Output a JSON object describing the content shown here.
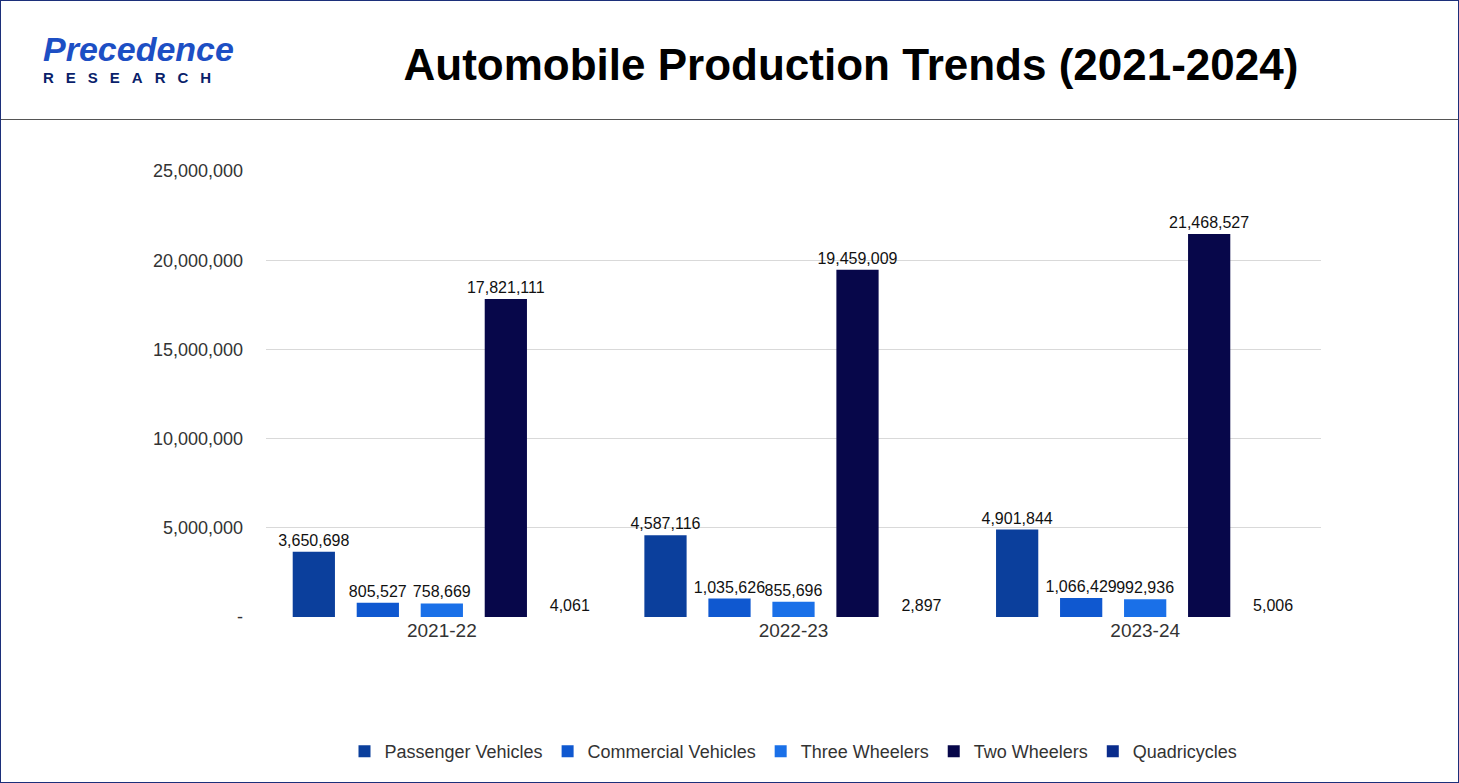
{
  "logo": {
    "name": "Precedence",
    "tagline": "RESEARCH"
  },
  "chart_data": {
    "type": "bar",
    "title": "Automobile Production Trends (2021-2024)",
    "categories": [
      "2021-22",
      "2022-23",
      "2023-24"
    ],
    "series": [
      {
        "name": "Passenger Vehicles",
        "color": "#0b3f9c",
        "values": [
          3650698,
          4587116,
          4901844
        ],
        "value_labels": [
          "3,650,698",
          "4,587,116",
          "4,901,844"
        ]
      },
      {
        "name": "Commercial Vehicles",
        "color": "#0f58d0",
        "values": [
          805527,
          1035626,
          1066429
        ],
        "value_labels": [
          "805,527",
          "1,035,626",
          "1,066,429"
        ]
      },
      {
        "name": "Three Wheelers",
        "color": "#1a70e8",
        "values": [
          758669,
          855696,
          992936
        ],
        "value_labels": [
          "758,669",
          "855,696",
          "992,936"
        ]
      },
      {
        "name": "Two Wheelers",
        "color": "#07074a",
        "values": [
          17821111,
          19459009,
          21468527
        ],
        "value_labels": [
          "17,821,111",
          "19,459,009",
          "21,468,527"
        ]
      },
      {
        "name": "Quadricycles",
        "color": "#0a2c8c",
        "values": [
          4061,
          2897,
          5006
        ],
        "value_labels": [
          "4,061",
          "2,897",
          "5,006"
        ]
      }
    ],
    "ylim": [
      0,
      25000000
    ],
    "yticks": [
      {
        "value": 0,
        "label": "-"
      },
      {
        "value": 5000000,
        "label": "5,000,000"
      },
      {
        "value": 10000000,
        "label": "10,000,000"
      },
      {
        "value": 15000000,
        "label": "15,000,000"
      },
      {
        "value": 20000000,
        "label": "20,000,000"
      },
      {
        "value": 25000000,
        "label": "25,000,000"
      }
    ],
    "grid": true,
    "legend": "bottom",
    "data_labels": true
  }
}
